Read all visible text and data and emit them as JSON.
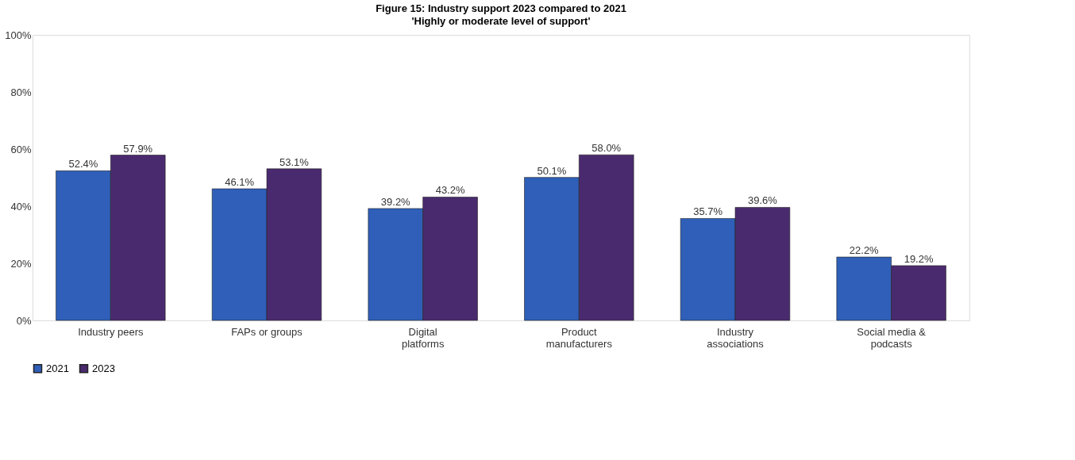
{
  "chart_data": {
    "type": "bar",
    "title": "Figure 15: Industry support 2023 compared to 2021",
    "subtitle": "'Highly or moderate level of support'",
    "categories": [
      "Industry peers",
      "FAPs or groups",
      "Digital platforms",
      "Product manufacturers",
      "Industry associations",
      "Social media & podcasts"
    ],
    "series": [
      {
        "name": "2021",
        "color": "#2f5fb8",
        "values": [
          52.4,
          46.1,
          39.2,
          50.1,
          35.7,
          22.2
        ],
        "value_labels": [
          "52.4%",
          "46.1%",
          "39.2%",
          "50.1%",
          "35.7%",
          "22.2%"
        ]
      },
      {
        "name": "2023",
        "color": "#4a2a6e",
        "values": [
          57.9,
          53.1,
          43.2,
          58.0,
          39.6,
          19.2
        ],
        "value_labels": [
          "57.9%",
          "53.1%",
          "43.2%",
          "58.0%",
          "39.6%",
          "19.2%"
        ]
      }
    ],
    "ylim": [
      0,
      100
    ],
    "yticks": [
      {
        "value": 0,
        "label": "0%"
      },
      {
        "value": 20,
        "label": "20%"
      },
      {
        "value": 40,
        "label": "40%"
      },
      {
        "value": 60,
        "label": "60%"
      },
      {
        "value": 80,
        "label": "80%"
      },
      {
        "value": 100,
        "label": "100%"
      }
    ],
    "grid": false,
    "legend": "bottom"
  }
}
